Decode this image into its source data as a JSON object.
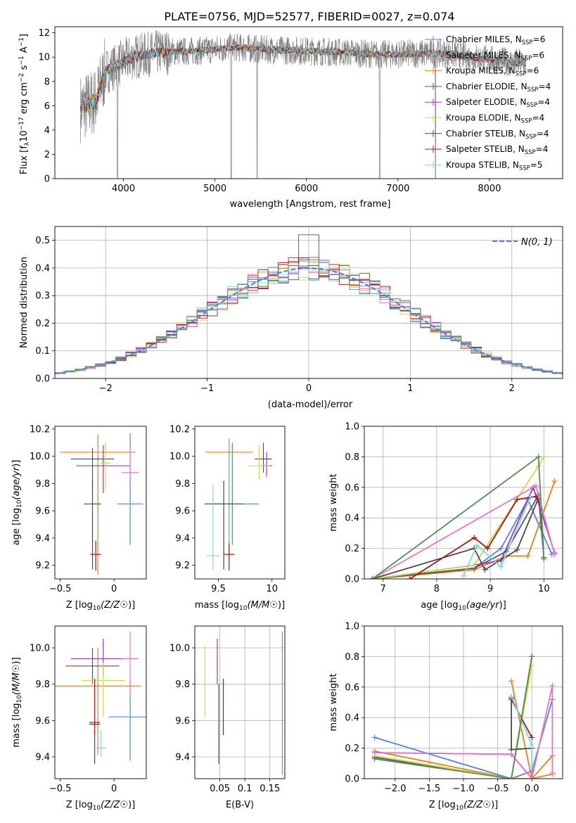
{
  "figure_title": "PLATE=0756, MJD=52577, FIBERID=0027, z=0.074",
  "colors": {
    "chabrier_miles": "#5b84d6",
    "salpeter_miles": "#e07f1b",
    "kroupa_miles": "#e87c2a",
    "chabrier_elodie": "#555555",
    "salpeter_elodie": "#9b35b5",
    "kroupa_elodie": "#c8dc4a",
    "chabrier_stelib": "#4a4a4a",
    "salpeter_stelib": "#a01818",
    "kroupa_stelib": "#7fd6dc",
    "data": "#808080",
    "normal_curve": "#5b84d6"
  },
  "legend_spectrum": [
    {
      "label": "Chabrier MILES, N",
      "sub": "SSP",
      "tail": "=6",
      "color": "#5b84d6"
    },
    {
      "label": "Salpeter MILES, N",
      "sub": "SSP",
      "tail": "=6",
      "color": "#8fa7d8"
    },
    {
      "label": "Kroupa MILES, N",
      "sub": "SSP",
      "tail": "=6",
      "color": "#e07f1b"
    },
    {
      "label": "Chabrier ELODIE, N",
      "sub": "SSP",
      "tail": "=4",
      "color": "#555555"
    },
    {
      "label": "Salpeter ELODIE, N",
      "sub": "SSP",
      "tail": "=4",
      "color": "#9b35b5"
    },
    {
      "label": "Kroupa ELODIE, N",
      "sub": "SSP",
      "tail": "=4",
      "color": "#c8dc4a"
    },
    {
      "label": "Chabrier STELIB, N",
      "sub": "SSP",
      "tail": "=4",
      "color": "#4a4a4a"
    },
    {
      "label": "Salpeter STELIB, N",
      "sub": "SSP",
      "tail": "=4",
      "color": "#a01818"
    },
    {
      "label": "Kroupa STELIB, N",
      "sub": "SSP",
      "tail": "=5",
      "color": "#7fd6dc"
    }
  ],
  "chart_data": [
    {
      "id": "spectrum",
      "type": "line",
      "xlabel": "wavelength [Angstrom, rest frame]",
      "ylabel": "Flux [f",
      "xlim": [
        3250,
        8800
      ],
      "ylim": [
        0,
        12.5
      ],
      "xticks": [
        4000,
        5000,
        6000,
        7000,
        8000
      ],
      "yticks": [
        0,
        2,
        4,
        6,
        8,
        10,
        12
      ],
      "grid": false,
      "legend_position": "right",
      "x_range_data": [
        3530,
        8400
      ],
      "continuum_knots": [
        [
          3530,
          5.8
        ],
        [
          3700,
          6.4
        ],
        [
          3800,
          8.8
        ],
        [
          3950,
          9.4
        ],
        [
          4100,
          10.0
        ],
        [
          4400,
          10.4
        ],
        [
          4800,
          10.5
        ],
        [
          5200,
          10.8
        ],
        [
          5600,
          10.6
        ],
        [
          6000,
          10.5
        ],
        [
          6400,
          10.4
        ],
        [
          6800,
          10.2
        ],
        [
          7200,
          10.3
        ],
        [
          7500,
          10.3
        ],
        [
          7800,
          10.0
        ],
        [
          8000,
          9.8
        ],
        [
          8200,
          9.6
        ],
        [
          8400,
          9.5
        ]
      ],
      "absorption_features": [
        [
          3935,
          0.0
        ],
        [
          5177,
          0.0
        ],
        [
          5460,
          0.0
        ],
        [
          6800,
          0.0
        ],
        [
          7410,
          0.0
        ]
      ]
    },
    {
      "id": "residuals",
      "type": "line",
      "xlabel": "(data-model)/error",
      "ylabel": "Normed distribution",
      "xlim": [
        -2.5,
        2.5
      ],
      "ylim": [
        0,
        0.55
      ],
      "xticks": [
        -2,
        -1,
        0,
        1,
        2
      ],
      "yticks": [
        0.0,
        0.1,
        0.2,
        0.3,
        0.4,
        0.5
      ],
      "grid": true,
      "legend": "N(0, 1)",
      "legend_position": "top-right"
    },
    {
      "id": "age_vs_Z",
      "type": "scatter",
      "xlabel": "Z",
      "ylabel": "age",
      "xlim": [
        -0.55,
        0.3
      ],
      "ylim": [
        9.1,
        10.22
      ],
      "xticks": [
        -0.5,
        0.0
      ],
      "yticks": [
        9.2,
        9.4,
        9.6,
        9.8,
        10.0,
        10.2
      ],
      "grid": false,
      "points": [
        {
          "x": 0.15,
          "y": 9.65,
          "xerr": 0.12,
          "yerr_lo": 0.3,
          "yerr_hi": 0.52,
          "color": "#5b84d6"
        },
        {
          "x": -0.15,
          "y": 10.03,
          "xerr": 0.35,
          "yerr_lo": 0.9,
          "yerr_hi": 0.13,
          "color": "#e07f1b"
        },
        {
          "x": -0.2,
          "y": 9.98,
          "xerr": 0.2,
          "yerr_lo": 0.2,
          "yerr_hi": 0.08,
          "color": "#555555"
        },
        {
          "x": -0.1,
          "y": 9.93,
          "xerr": 0.25,
          "yerr_lo": 0.2,
          "yerr_hi": 0.15,
          "color": "#9b35b5"
        },
        {
          "x": -0.08,
          "y": 9.95,
          "xerr": 0.05,
          "yerr_lo": 0.2,
          "yerr_hi": 0.15,
          "color": "#c8dc4a"
        },
        {
          "x": -0.2,
          "y": 9.65,
          "xerr": 0.08,
          "yerr_lo": 0.48,
          "yerr_hi": 0.17,
          "color": "#4a4a4a"
        },
        {
          "x": -0.17,
          "y": 9.28,
          "xerr": 0.05,
          "yerr_lo": 0.12,
          "yerr_hi": 0.1,
          "color": "#a01818"
        },
        {
          "x": 0.15,
          "y": 9.88,
          "xerr": 0.08,
          "yerr_lo": 0.07,
          "yerr_hi": 0.2,
          "color": "#e377c2"
        }
      ]
    },
    {
      "id": "age_vs_mass",
      "type": "scatter",
      "xlabel": "mass",
      "ylabel": "",
      "xlim": [
        9.28,
        10.12
      ],
      "ylim": [
        9.1,
        10.22
      ],
      "xticks": [
        9.5,
        10.0
      ],
      "yticks": [
        9.2,
        9.4,
        9.6,
        9.8,
        10.0,
        10.2
      ],
      "grid": false,
      "points": [
        {
          "x": 9.63,
          "y": 9.65,
          "xerr": 0.25,
          "yerr_lo": 0.3,
          "yerr_hi": 0.45,
          "color": "#5b84d6"
        },
        {
          "x": 9.6,
          "y": 10.03,
          "xerr": 0.22,
          "yerr_lo": 0.8,
          "yerr_hi": 0.1,
          "color": "#e07f1b"
        },
        {
          "x": 9.92,
          "y": 9.98,
          "xerr": 0.08,
          "yerr_lo": 0.1,
          "yerr_hi": 0.12,
          "color": "#555555"
        },
        {
          "x": 9.95,
          "y": 9.93,
          "xerr": 0.05,
          "yerr_lo": 0.08,
          "yerr_hi": 0.1,
          "color": "#9b35b5"
        },
        {
          "x": 9.88,
          "y": 9.93,
          "xerr": 0.1,
          "yerr_lo": 0.1,
          "yerr_hi": 0.15,
          "color": "#c8dc4a"
        },
        {
          "x": 9.55,
          "y": 9.65,
          "xerr": 0.18,
          "yerr_lo": 0.48,
          "yerr_hi": 0.17,
          "color": "#4a4a4a"
        },
        {
          "x": 9.6,
          "y": 9.28,
          "xerr": 0.05,
          "yerr_lo": 0.12,
          "yerr_hi": 0.08,
          "color": "#a01818"
        },
        {
          "x": 9.45,
          "y": 9.27,
          "xerr": 0.06,
          "yerr_lo": 0.1,
          "yerr_hi": 0.52,
          "color": "#7fd6dc"
        }
      ]
    },
    {
      "id": "weight_vs_age",
      "type": "line",
      "xlabel": "age",
      "ylabel": "mass weight",
      "xlim": [
        6.65,
        10.35
      ],
      "ylim": [
        0,
        1.0
      ],
      "xticks": [
        7,
        8,
        9,
        10
      ],
      "yticks": [
        0.0,
        0.2,
        0.4,
        0.6,
        0.8,
        1.0
      ],
      "grid": true,
      "series": [
        {
          "color": "#5b84d6",
          "x": [
            6.8,
            8.7,
            9.2,
            9.7,
            10.15
          ],
          "y": [
            0.0,
            0.07,
            0.2,
            0.52,
            0.16
          ]
        },
        {
          "color": "#e07f1b",
          "x": [
            6.8,
            8.7,
            9.3,
            9.7,
            10.2
          ],
          "y": [
            0.0,
            0.06,
            0.15,
            0.15,
            0.64
          ]
        },
        {
          "color": "#555555",
          "x": [
            6.8,
            8.7,
            9.3,
            9.9,
            10.0
          ],
          "y": [
            0.0,
            0.07,
            0.18,
            0.55,
            0.14
          ]
        },
        {
          "color": "#9b35b5",
          "x": [
            6.8,
            8.7,
            9.2,
            9.8,
            10.2
          ],
          "y": [
            0.0,
            0.09,
            0.12,
            0.6,
            0.17
          ]
        },
        {
          "color": "#c8dc4a",
          "x": [
            6.8,
            8.7,
            9.9,
            10.0
          ],
          "y": [
            0.0,
            0.09,
            0.74,
            0.8
          ]
        },
        {
          "color": "#4a4a4a",
          "x": [
            6.8,
            8.7,
            8.9,
            9.5,
            9.9
          ],
          "y": [
            0.0,
            0.2,
            0.06,
            0.19,
            0.53
          ]
        },
        {
          "color": "#a01818",
          "x": [
            7.5,
            8.7,
            8.95,
            9.5,
            9.85
          ],
          "y": [
            0.0,
            0.27,
            0.2,
            0.52,
            0.54
          ]
        },
        {
          "color": "#7fd6dc",
          "x": [
            8.5,
            8.75,
            9.2,
            9.75
          ],
          "y": [
            0.02,
            0.22,
            0.08,
            0.54
          ]
        },
        {
          "color": "#e377c2",
          "x": [
            6.8,
            9.85,
            10.2
          ],
          "y": [
            0.0,
            0.61,
            0.16
          ]
        },
        {
          "color": "#5a8a5a",
          "x": [
            6.8,
            9.9,
            10.0
          ],
          "y": [
            0.0,
            0.8,
            0.13
          ]
        }
      ]
    },
    {
      "id": "mass_vs_Z",
      "type": "scatter",
      "xlabel": "Z",
      "ylabel": "mass",
      "xlim": [
        -0.55,
        0.3
      ],
      "ylim": [
        9.28,
        10.12
      ],
      "xticks": [
        -0.5,
        0.0
      ],
      "yticks": [
        9.4,
        9.6,
        9.8,
        10.0
      ],
      "grid": false,
      "points": [
        {
          "x": 0.15,
          "y": 9.62,
          "xerr": 0.2,
          "yerr_lo": 0.24,
          "yerr_hi": 0.2,
          "color": "#5b84d6"
        },
        {
          "x": -0.15,
          "y": 9.79,
          "xerr": 0.4,
          "yerr_lo": 0.38,
          "yerr_hi": 0.21,
          "color": "#e07f1b"
        },
        {
          "x": -0.2,
          "y": 9.9,
          "xerr": 0.25,
          "yerr_lo": 0.1,
          "yerr_hi": 0.1,
          "color": "#555555"
        },
        {
          "x": -0.1,
          "y": 9.94,
          "xerr": 0.3,
          "yerr_lo": 0.1,
          "yerr_hi": 0.11,
          "color": "#9b35b5"
        },
        {
          "x": -0.1,
          "y": 9.82,
          "xerr": 0.2,
          "yerr_lo": 0.2,
          "yerr_hi": 0.1,
          "color": "#c8dc4a"
        },
        {
          "x": -0.18,
          "y": 9.59,
          "xerr": 0.05,
          "yerr_lo": 0.23,
          "yerr_hi": 0.23,
          "color": "#4a4a4a"
        },
        {
          "x": -0.18,
          "y": 9.58,
          "xerr": 0.05,
          "yerr_lo": 0.06,
          "yerr_hi": 0.25,
          "color": "#a01818"
        },
        {
          "x": -0.12,
          "y": 9.45,
          "xerr": 0.05,
          "yerr_lo": 0.05,
          "yerr_hi": 0.1,
          "color": "#7fd6dc"
        },
        {
          "x": 0.15,
          "y": 9.94,
          "xerr": 0.08,
          "yerr_lo": 0.2,
          "yerr_hi": 0.15,
          "color": "#e377c2"
        }
      ]
    },
    {
      "id": "mass_vs_EBV",
      "type": "scatter",
      "xlabel": "E(B-V)",
      "ylabel": "",
      "xlim": [
        0.0,
        0.18
      ],
      "ylim": [
        9.28,
        10.12
      ],
      "xticks": [
        0.05,
        0.1,
        0.15
      ],
      "ytick_labels_shown": [
        9.4,
        9.6,
        9.8,
        10.0
      ],
      "grid": true,
      "points": [
        {
          "x": 0.02,
          "y": 9.82,
          "yerr_lo": 0.2,
          "yerr_hi": 0.19,
          "color": "#c8dc4a"
        },
        {
          "x": 0.045,
          "y": 9.9,
          "yerr_lo": 0.1,
          "yerr_hi": 0.15,
          "color": "#9b35b5"
        },
        {
          "x": 0.048,
          "y": 9.6,
          "yerr_lo": 0.24,
          "yerr_hi": 0.2,
          "color": "#555555"
        },
        {
          "x": 0.057,
          "y": 9.68,
          "yerr_lo": 0.16,
          "yerr_hi": 0.15,
          "color": "#a01818"
        },
        {
          "x": 0.175,
          "y": 9.7,
          "yerr_lo": 0.4,
          "yerr_hi": 0.39,
          "color": "#e07f1b"
        }
      ]
    },
    {
      "id": "weight_vs_Z",
      "type": "line",
      "xlabel": "Z",
      "ylabel": "mass weight",
      "xlim": [
        -2.45,
        0.45
      ],
      "ylim": [
        0,
        1.0
      ],
      "xticks": [
        -2.0,
        -1.5,
        -1.0,
        -0.5,
        0.0
      ],
      "yticks": [
        0.0,
        0.2,
        0.4,
        0.6,
        0.8,
        1.0
      ],
      "grid": true,
      "series": [
        {
          "color": "#5b84d6",
          "x": [
            -2.3,
            -0.3,
            0.0,
            0.3
          ],
          "y": [
            0.27,
            0.0,
            0.05,
            0.52
          ]
        },
        {
          "color": "#e07f1b",
          "x": [
            -2.3,
            -0.3,
            0.0,
            0.3
          ],
          "y": [
            0.18,
            0.0,
            0.0,
            0.15
          ]
        },
        {
          "color": "#e87c2a",
          "x": [
            -0.3,
            0.0,
            0.3
          ],
          "y": [
            0.64,
            0.0,
            0.03
          ]
        },
        {
          "color": "#555555",
          "x": [
            -2.3,
            -0.3,
            0.0
          ],
          "y": [
            0.14,
            0.0,
            0.8
          ]
        },
        {
          "color": "#9b35b5",
          "x": [
            -2.3,
            -0.3,
            0.0
          ],
          "y": [
            0.17,
            0.16,
            0.0
          ]
        },
        {
          "color": "#c8dc4a",
          "x": [
            -2.3,
            -0.3,
            0.0
          ],
          "y": [
            0.15,
            0.0,
            0.74
          ]
        },
        {
          "color": "#4a4a4a",
          "x": [
            -0.3,
            -0.3,
            0.0
          ],
          "y": [
            0.53,
            0.19,
            0.2
          ]
        },
        {
          "color": "#a01818",
          "x": [
            -0.3,
            0.0
          ],
          "y": [
            0.52,
            0.27
          ]
        },
        {
          "color": "#7fd6dc",
          "x": [
            -0.3,
            0.0,
            0.0
          ],
          "y": [
            0.54,
            0.22,
            0.08
          ]
        },
        {
          "color": "#e377c2",
          "x": [
            -2.3,
            -0.3,
            0.0,
            0.3,
            0.3
          ],
          "y": [
            0.17,
            0.16,
            0.0,
            0.61,
            0.04
          ]
        },
        {
          "color": "#5a8a5a",
          "x": [
            -2.3,
            -0.3,
            0.0
          ],
          "y": [
            0.13,
            0.0,
            0.8
          ]
        }
      ]
    }
  ]
}
